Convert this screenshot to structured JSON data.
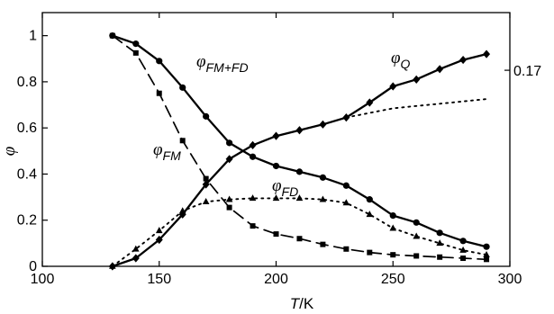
{
  "chart_data": {
    "type": "line",
    "xlabel": {
      "italic": "T",
      "unit": "/K"
    },
    "ylabel": "φ",
    "xlim": [
      100,
      300
    ],
    "ylim": [
      0,
      1.1
    ],
    "x_ticks": [
      "100",
      "150",
      "200",
      "250",
      "300"
    ],
    "y_ticks": [
      "0",
      "0.2",
      "0.4",
      "0.6",
      "0.8",
      "1"
    ],
    "right_axis_ticks": [
      {
        "label": "0.17",
        "value": 0.85
      }
    ],
    "series": [
      {
        "name": "φFM+FD",
        "label": {
          "phi": "φ",
          "sub": "FM+FD"
        },
        "style": "solid",
        "marker": "circle",
        "x": [
          130,
          140,
          150,
          160,
          170,
          180,
          190,
          200,
          210,
          220,
          230,
          240,
          250,
          260,
          270,
          280,
          290
        ],
        "y": [
          1.0,
          0.965,
          0.89,
          0.775,
          0.65,
          0.535,
          0.475,
          0.435,
          0.41,
          0.385,
          0.35,
          0.29,
          0.22,
          0.19,
          0.145,
          0.11,
          0.085
        ]
      },
      {
        "name": "φQ",
        "label": {
          "phi": "φ",
          "sub": "Q"
        },
        "style": "solid",
        "marker": "diamond",
        "x": [
          130,
          140,
          150,
          160,
          170,
          180,
          190,
          200,
          210,
          220,
          230,
          240,
          250,
          260,
          270,
          280,
          290
        ],
        "y": [
          0.0,
          0.035,
          0.115,
          0.225,
          0.355,
          0.465,
          0.525,
          0.565,
          0.59,
          0.615,
          0.645,
          0.71,
          0.78,
          0.81,
          0.855,
          0.895,
          0.92
        ]
      },
      {
        "name": "φQ extrapolated",
        "style": "dotted",
        "marker": "none",
        "x": [
          230,
          240,
          250,
          260,
          270,
          280,
          290
        ],
        "y": [
          0.645,
          0.665,
          0.685,
          0.695,
          0.705,
          0.715,
          0.725
        ]
      },
      {
        "name": "φFM",
        "label": {
          "phi": "φ",
          "sub": "FM"
        },
        "style": "dashed",
        "marker": "square",
        "x": [
          130,
          140,
          150,
          160,
          170,
          180,
          190,
          200,
          210,
          220,
          230,
          240,
          250,
          260,
          270,
          280,
          290
        ],
        "y": [
          1.0,
          0.925,
          0.75,
          0.545,
          0.38,
          0.255,
          0.175,
          0.14,
          0.12,
          0.095,
          0.075,
          0.06,
          0.05,
          0.045,
          0.04,
          0.035,
          0.03
        ]
      },
      {
        "name": "φFD",
        "label": {
          "phi": "φ",
          "sub": "FD"
        },
        "style": "dotted",
        "marker": "triangle",
        "x": [
          130,
          140,
          150,
          160,
          170,
          180,
          190,
          200,
          210,
          220,
          230,
          240,
          250,
          260,
          270,
          280,
          290
        ],
        "y": [
          0.0,
          0.075,
          0.155,
          0.24,
          0.28,
          0.29,
          0.295,
          0.295,
          0.295,
          0.29,
          0.275,
          0.225,
          0.165,
          0.13,
          0.1,
          0.07,
          0.05
        ]
      }
    ]
  }
}
